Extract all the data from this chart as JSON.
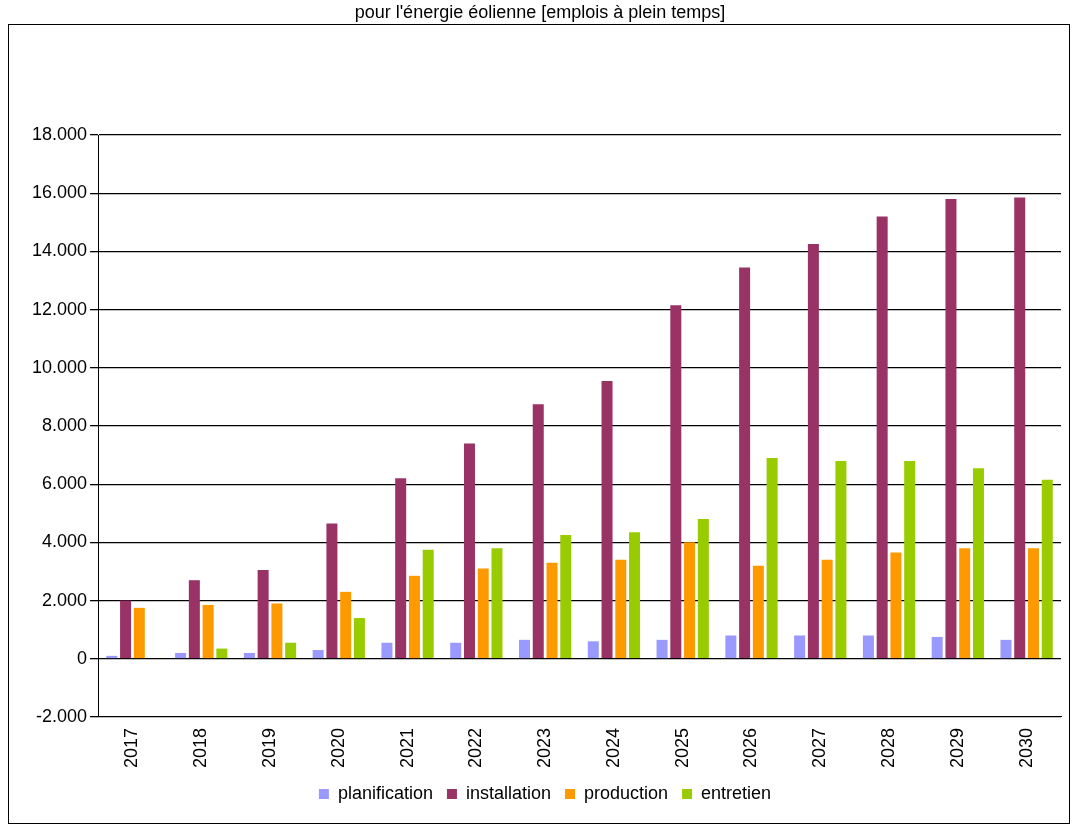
{
  "chart_data": {
    "type": "bar",
    "title": "pour l'énergie éolienne [emplois à plein temps]",
    "categories": [
      "2017",
      "2018",
      "2019",
      "2020",
      "2021",
      "2022",
      "2023",
      "2024",
      "2025",
      "2026",
      "2027",
      "2028",
      "2029",
      "2030"
    ],
    "series": [
      {
        "name": "planification",
        "color": "#9999ff",
        "values": [
          100,
          200,
          200,
          300,
          550,
          550,
          650,
          600,
          650,
          800,
          800,
          800,
          750,
          650
        ]
      },
      {
        "name": "installation",
        "color": "#993366",
        "values": [
          2000,
          2700,
          3050,
          4650,
          6200,
          7400,
          8750,
          9550,
          12150,
          13450,
          14250,
          15200,
          15800,
          15850
        ]
      },
      {
        "name": "production",
        "color": "#ff9900",
        "values": [
          1750,
          1850,
          1900,
          2300,
          2850,
          3100,
          3300,
          3400,
          4000,
          3200,
          3400,
          3650,
          3800,
          3800
        ]
      },
      {
        "name": "entretien",
        "color": "#99cc00",
        "values": [
          0,
          350,
          550,
          1400,
          3750,
          3800,
          4250,
          4350,
          4800,
          6900,
          6800,
          6800,
          6550,
          6150
        ]
      }
    ],
    "ylim": [
      -2000,
      18000
    ],
    "yticks": [
      {
        "value": -2000,
        "label": "-2.000"
      },
      {
        "value": 0,
        "label": "0"
      },
      {
        "value": 2000,
        "label": "2.000"
      },
      {
        "value": 4000,
        "label": "4.000"
      },
      {
        "value": 6000,
        "label": "6.000"
      },
      {
        "value": 8000,
        "label": "8.000"
      },
      {
        "value": 10000,
        "label": "10.000"
      },
      {
        "value": 12000,
        "label": "12.000"
      },
      {
        "value": 14000,
        "label": "14.000"
      },
      {
        "value": 16000,
        "label": "16.000"
      },
      {
        "value": 18000,
        "label": "18.000"
      }
    ],
    "grid": "y",
    "legend": "bottom"
  }
}
